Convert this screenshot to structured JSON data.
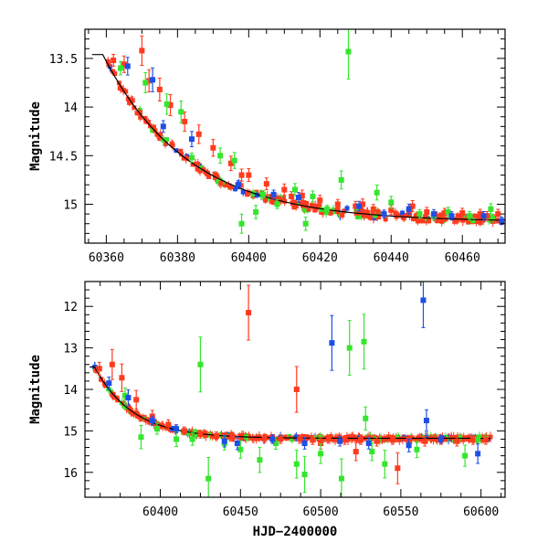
{
  "chart_data": [
    {
      "type": "scatter",
      "panel": "top",
      "xlabel": "",
      "ylabel": "Magnitude",
      "xlim": [
        60354,
        60472
      ],
      "ylim": [
        15.4,
        13.2
      ],
      "y_inverted": true,
      "xticks": [
        60360,
        60380,
        60400,
        60420,
        60440,
        60460
      ],
      "xtick_labels": [
        "60360",
        "60380",
        "60400",
        "60420",
        "60440",
        "60460"
      ],
      "yticks": [
        13.5,
        14,
        14.5,
        15
      ],
      "ytick_labels": [
        "13.5",
        "14",
        "14.5",
        "15"
      ],
      "grid": false,
      "model_curve": {
        "color": "#000000",
        "x_range": [
          60356,
          60472
        ]
      },
      "series": [
        {
          "color": "#ff3b1f",
          "points": [
            [
              60362,
              13.52
            ],
            [
              60365,
              13.56
            ],
            [
              60370,
              13.42
            ],
            [
              60372,
              13.73
            ],
            [
              60375,
              13.82
            ],
            [
              60378,
              13.98
            ],
            [
              60382,
              14.15
            ],
            [
              60386,
              14.28
            ],
            [
              60390,
              14.42
            ],
            [
              60395,
              14.58
            ],
            [
              60400,
              14.7
            ],
            [
              60405,
              14.79
            ],
            [
              60410,
              14.85
            ],
            [
              60415,
              14.91
            ],
            [
              60420,
              14.96
            ],
            [
              60425,
              15.0
            ],
            [
              60430,
              15.02
            ],
            [
              60435,
              15.05
            ],
            [
              60440,
              15.06
            ],
            [
              60445,
              15.07
            ],
            [
              60450,
              15.08
            ],
            [
              60455,
              15.09
            ],
            [
              60460,
              15.09
            ],
            [
              60465,
              15.1
            ],
            [
              60470,
              15.1
            ],
            [
              60398,
              14.7
            ],
            [
              60412,
              14.92
            ],
            [
              60432,
              15.0
            ],
            [
              60446,
              15.02
            ],
            [
              60467,
              15.12
            ]
          ]
        },
        {
          "color": "#35e52e",
          "points": [
            [
              60364,
              13.6
            ],
            [
              60371,
              13.75
            ],
            [
              60377,
              13.97
            ],
            [
              60381,
              14.05
            ],
            [
              60384,
              14.52
            ],
            [
              60392,
              14.5
            ],
            [
              60396,
              14.55
            ],
            [
              60398,
              15.2
            ],
            [
              60404,
              14.9
            ],
            [
              60408,
              15.0
            ],
            [
              60413,
              14.85
            ],
            [
              60418,
              14.92
            ],
            [
              60422,
              15.05
            ],
            [
              60426,
              14.75
            ],
            [
              60428,
              13.43
            ],
            [
              60436,
              14.88
            ],
            [
              60440,
              14.98
            ],
            [
              60448,
              15.1
            ],
            [
              60452,
              15.12
            ],
            [
              60456,
              15.08
            ],
            [
              60462,
              15.12
            ],
            [
              60468,
              15.05
            ],
            [
              60402,
              15.08
            ],
            [
              60416,
              15.2
            ]
          ]
        },
        {
          "color": "#1e4fe6",
          "points": [
            [
              60366,
              13.58
            ],
            [
              60373,
              13.72
            ],
            [
              60376,
              14.2
            ],
            [
              60384,
              14.33
            ],
            [
              60397,
              14.8
            ],
            [
              60407,
              14.9
            ],
            [
              60414,
              14.93
            ],
            [
              60431,
              15.02
            ],
            [
              60438,
              15.1
            ],
            [
              60445,
              15.05
            ],
            [
              60452,
              15.1
            ],
            [
              60457,
              15.12
            ],
            [
              60466,
              15.12
            ],
            [
              60471,
              15.17
            ]
          ]
        }
      ]
    },
    {
      "type": "scatter",
      "panel": "bottom",
      "xlabel": "HJD−2400000",
      "ylabel": "Magnitude",
      "xlim": [
        60353,
        60615
      ],
      "ylim": [
        16.6,
        11.4
      ],
      "y_inverted": true,
      "xticks": [
        60400,
        60450,
        60500,
        60550,
        60600
      ],
      "xtick_labels": [
        "60400",
        "60450",
        "60500",
        "60550",
        "60600"
      ],
      "yticks": [
        12,
        13,
        14,
        15,
        16
      ],
      "ytick_labels": [
        "12",
        "13",
        "14",
        "15",
        "16"
      ],
      "grid": false,
      "model_curve": {
        "color": "#000000",
        "x_range": [
          60356,
          60606
        ]
      },
      "series": [
        {
          "color": "#ff3b1f",
          "points": [
            [
              60362,
              13.5
            ],
            [
              60370,
              13.4
            ],
            [
              60376,
              13.72
            ],
            [
              60385,
              14.25
            ],
            [
              60395,
              14.65
            ],
            [
              60405,
              14.85
            ],
            [
              60415,
              15.0
            ],
            [
              60425,
              15.08
            ],
            [
              60435,
              15.12
            ],
            [
              60445,
              15.15
            ],
            [
              60455,
              12.15
            ],
            [
              60465,
              15.18
            ],
            [
              60475,
              15.2
            ],
            [
              60485,
              14.0
            ],
            [
              60487,
              15.2
            ],
            [
              60495,
              15.22
            ],
            [
              60505,
              15.2
            ],
            [
              60515,
              15.22
            ],
            [
              60525,
              15.22
            ],
            [
              60535,
              15.25
            ],
            [
              60545,
              15.22
            ],
            [
              60548,
              15.9
            ],
            [
              60555,
              15.22
            ],
            [
              60565,
              15.25
            ],
            [
              60575,
              15.22
            ],
            [
              60585,
              15.25
            ],
            [
              60595,
              15.22
            ],
            [
              60603,
              15.22
            ],
            [
              60522,
              15.5
            ],
            [
              60500,
              15.3
            ]
          ]
        },
        {
          "color": "#35e52e",
          "points": [
            [
              60378,
              14.15
            ],
            [
              60388,
              15.15
            ],
            [
              60398,
              14.95
            ],
            [
              60410,
              15.2
            ],
            [
              60420,
              15.2
            ],
            [
              60425,
              13.4
            ],
            [
              60430,
              16.15
            ],
            [
              60440,
              15.3
            ],
            [
              60450,
              15.45
            ],
            [
              60462,
              15.7
            ],
            [
              60472,
              15.3
            ],
            [
              60485,
              15.8
            ],
            [
              60490,
              16.05
            ],
            [
              60500,
              15.55
            ],
            [
              60513,
              16.15
            ],
            [
              60518,
              13.0
            ],
            [
              60527,
              12.85
            ],
            [
              60528,
              14.7
            ],
            [
              60532,
              15.5
            ],
            [
              60540,
              15.8
            ],
            [
              60560,
              15.45
            ],
            [
              60590,
              15.6
            ],
            [
              60598,
              15.2
            ]
          ]
        },
        {
          "color": "#1e4fe6",
          "points": [
            [
              60368,
              13.85
            ],
            [
              60380,
              14.2
            ],
            [
              60395,
              14.75
            ],
            [
              60410,
              14.95
            ],
            [
              60440,
              15.25
            ],
            [
              60448,
              15.3
            ],
            [
              60470,
              15.2
            ],
            [
              60490,
              15.3
            ],
            [
              60507,
              12.88
            ],
            [
              60512,
              15.25
            ],
            [
              60530,
              15.3
            ],
            [
              60555,
              15.35
            ],
            [
              60564,
              11.85
            ],
            [
              60566,
              14.75
            ],
            [
              60575,
              15.2
            ],
            [
              60598,
              15.55
            ]
          ]
        }
      ]
    }
  ]
}
